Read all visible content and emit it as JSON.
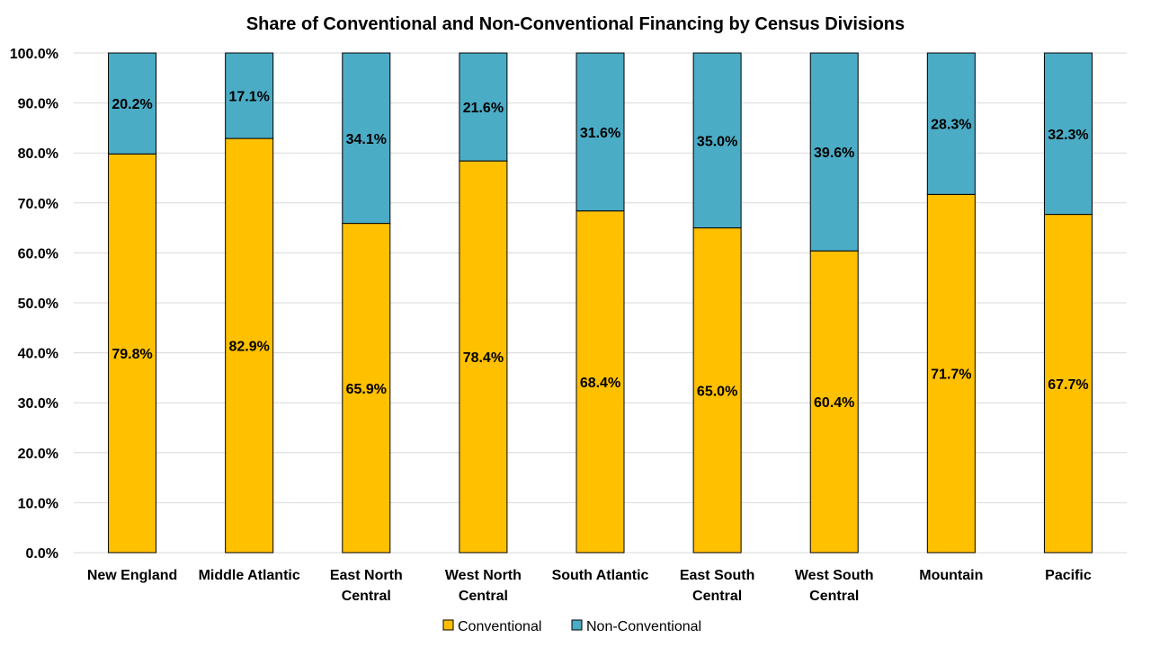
{
  "chart_data": {
    "type": "bar",
    "stacked": true,
    "title": "Share of Conventional and Non-Conventional Financing by Census Divisions",
    "categories": [
      [
        "New England"
      ],
      [
        "Middle Atlantic"
      ],
      [
        "East North",
        "Central"
      ],
      [
        "West North",
        "Central"
      ],
      [
        "South Atlantic"
      ],
      [
        "East South",
        "Central"
      ],
      [
        "West South",
        "Central"
      ],
      [
        "Mountain"
      ],
      [
        "Pacific"
      ]
    ],
    "series": [
      {
        "name": "Conventional",
        "color": "#FFC000",
        "values": [
          79.8,
          82.9,
          65.9,
          78.4,
          68.4,
          65.0,
          60.4,
          71.7,
          67.7
        ],
        "labels": [
          "79.8%",
          "82.9%",
          "65.9%",
          "78.4%",
          "68.4%",
          "65.0%",
          "60.4%",
          "71.7%",
          "67.7%"
        ]
      },
      {
        "name": "Non-Conventional",
        "color": "#4BACC6",
        "values": [
          20.2,
          17.1,
          34.1,
          21.6,
          31.6,
          35.0,
          39.6,
          28.3,
          32.3
        ],
        "labels": [
          "20.2%",
          "17.1%",
          "34.1%",
          "21.6%",
          "31.6%",
          "35.0%",
          "39.6%",
          "28.3%",
          "32.3%"
        ]
      }
    ],
    "ylim": [
      0,
      100
    ],
    "yticks": [
      0,
      10,
      20,
      30,
      40,
      50,
      60,
      70,
      80,
      90,
      100
    ],
    "ytick_labels": [
      "0.0%",
      "10.0%",
      "20.0%",
      "30.0%",
      "40.0%",
      "50.0%",
      "60.0%",
      "70.0%",
      "80.0%",
      "90.0%",
      "100.0%"
    ],
    "grid": true,
    "legend": "bottom"
  }
}
